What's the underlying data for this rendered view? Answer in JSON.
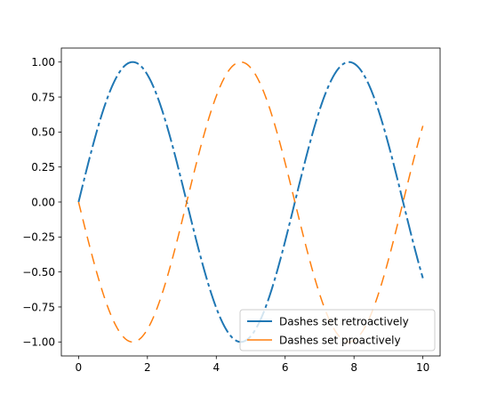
{
  "chart_data": {
    "type": "line",
    "title": "",
    "xlabel": "",
    "ylabel": "",
    "xlim": [
      -0.5,
      10.5
    ],
    "ylim": [
      -1.1,
      1.1
    ],
    "xticks": [
      0,
      2,
      4,
      6,
      8,
      10
    ],
    "xtick_labels": [
      "0",
      "2",
      "4",
      "6",
      "8",
      "10"
    ],
    "yticks": [
      -1.0,
      -0.75,
      -0.5,
      -0.25,
      0.0,
      0.25,
      0.5,
      0.75,
      1.0
    ],
    "ytick_labels": [
      "−1.00",
      "−0.75",
      "−0.50",
      "−0.25",
      "0.00",
      "0.25",
      "0.50",
      "0.75",
      "1.00"
    ],
    "grid": false,
    "legend_position": "lower-right",
    "x_range": [
      0,
      10
    ],
    "series": [
      {
        "name": "Dashes set retroactively",
        "function": "sin(x)",
        "color": "#1f77b4",
        "style": "dashed, long dashes with short gaps (pattern 10-2-2-2)"
      },
      {
        "name": "Dashes set proactively",
        "function": "-sin(x)",
        "color": "#ff7f0e",
        "style": "dashed, long dashes with medium gaps (pattern 6-2-6-2, offset)"
      }
    ]
  }
}
